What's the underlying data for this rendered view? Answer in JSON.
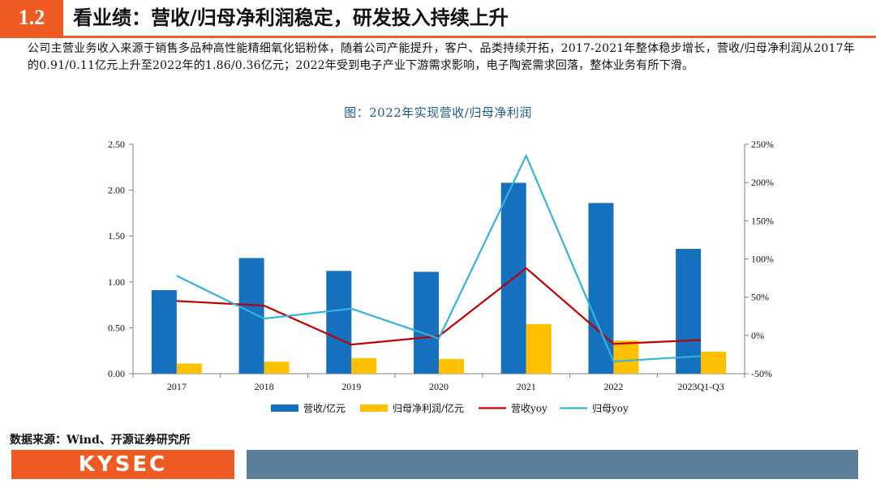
{
  "header": {
    "section_number": "1.2",
    "title": "看业绩：营收/归母净利润稳定，研发投入持续上升"
  },
  "description": "公司主营业务收入来源于销售多品种高性能精细氧化铝粉体，随着公司产能提升，客户、品类持续开拓，2017-2021年整体稳步增长，营收/归母净利润从2017年的0.91/0.11亿元上升至2022年的1.86/0.36亿元；2022年受到电子产业下游需求影响，电子陶瓷需求回落，整体业务有所下滑。",
  "source": "数据来源：Wind、开源证券研究所",
  "footer": {
    "logo_text": "KYSEC"
  },
  "colors": {
    "accent": "#f05a23",
    "revenue_bar": "#1570be",
    "profit_bar": "#ffc000",
    "revenue_yoy": "#c00000",
    "profit_yoy": "#33b4dc",
    "footer_bar": "#5c7f99"
  },
  "chart_data": {
    "type": "bar",
    "title": "图：2022年实现营收/归母净利润",
    "categories": [
      "2017",
      "2018",
      "2019",
      "2020",
      "2021",
      "2022",
      "2023Q1-Q3"
    ],
    "series": [
      {
        "name": "营收/亿元",
        "type": "bar",
        "axis": "left",
        "values": [
          0.91,
          1.26,
          1.12,
          1.11,
          2.08,
          1.86,
          1.36
        ]
      },
      {
        "name": "归母净利润/亿元",
        "type": "bar",
        "axis": "left",
        "values": [
          0.11,
          0.13,
          0.17,
          0.16,
          0.54,
          0.36,
          0.24
        ]
      },
      {
        "name": "营收yoy",
        "type": "line",
        "axis": "right",
        "values": [
          45,
          39,
          -12,
          -1,
          88,
          -11,
          -6
        ]
      },
      {
        "name": "归母yoy",
        "type": "line",
        "axis": "right",
        "values": [
          78,
          22,
          35,
          -4,
          235,
          -34,
          -27
        ]
      }
    ],
    "y_left": {
      "min": 0,
      "max": 2.5,
      "step": 0.5,
      "tick_labels": [
        "0.00",
        "0.50",
        "1.00",
        "1.50",
        "2.00",
        "2.50"
      ]
    },
    "y_right": {
      "min": -50,
      "max": 250,
      "step": 50,
      "tick_labels": [
        "-50%",
        "0%",
        "50%",
        "100%",
        "150%",
        "200%",
        "250%"
      ]
    },
    "grid": false,
    "legend_position": "bottom"
  }
}
